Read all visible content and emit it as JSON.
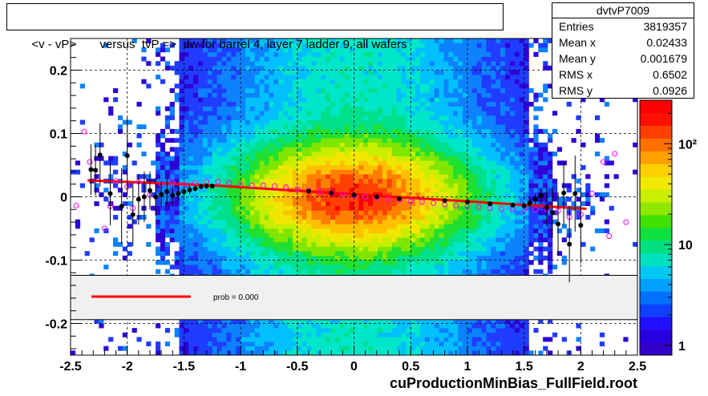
{
  "title": "<v - vP>       versus  tvP =>  dw for barrel 4, layer 7 ladder 9, all wafers",
  "footer": "cuProductionMinBias_FullField.root",
  "stats": {
    "name": "dvtvP7009",
    "rows": [
      {
        "label": "Entries",
        "value": "3819357"
      },
      {
        "label": "Mean x",
        "value": "0.02433"
      },
      {
        "label": "Mean y",
        "value": "0.001679"
      },
      {
        "label": "RMS x",
        "value": "0.6502"
      },
      {
        "label": "RMS y",
        "value": "0.0926"
      }
    ]
  },
  "fit_legend": {
    "label": "prob = 0.000",
    "color": "#ff0000"
  },
  "colors": {
    "fit_line": "#ff0000",
    "profile_black": "#000000",
    "profile_magenta": "#ff00ff",
    "legend_band": "#f0f0f0"
  },
  "chart_data": {
    "type": "heatmap",
    "title": "<v - vP>       versus  tvP =>  dw for barrel 4, layer 7 ladder 9, all wafers",
    "xlim": [
      -2.5,
      2.5
    ],
    "ylim": [
      -0.25,
      0.25
    ],
    "x_ticks": [
      "-2.5",
      "-2",
      "-1.5",
      "-1",
      "-0.5",
      "0",
      "0.5",
      "1",
      "1.5",
      "2",
      "2.5"
    ],
    "x_tick_values": [
      -2.5,
      -2,
      -1.5,
      -1,
      -0.5,
      0,
      0.5,
      1,
      1.5,
      2,
      2.5
    ],
    "y_ticks": [
      "0.2",
      "0.1",
      "0",
      "-0.1",
      "-0.2"
    ],
    "y_tick_values": [
      0.2,
      0.1,
      0,
      -0.1,
      -0.2
    ],
    "z_scale": "log",
    "z_ticks": [
      "1",
      "10",
      "10²"
    ],
    "z_tick_values": [
      1,
      10,
      100
    ],
    "grid": true,
    "fit_line": {
      "x": [
        -2.35,
        -1.25,
        2.05
      ],
      "y": [
        0.026,
        0.018,
        -0.019
      ]
    },
    "profile_black": {
      "x": [
        -2.32,
        -2.28,
        -2.24,
        -2.15,
        -2.05,
        -2.0,
        -1.95,
        -1.9,
        -1.85,
        -1.8,
        -1.75,
        -1.7,
        -1.65,
        -1.6,
        -1.55,
        -1.5,
        -1.45,
        -1.4,
        -1.35,
        -1.3,
        -1.25,
        -0.4,
        -0.2,
        0,
        0.2,
        0.4,
        0.8,
        1.0,
        1.2,
        1.4,
        1.5,
        1.55,
        1.6,
        1.65,
        1.7,
        1.75,
        1.8,
        1.85,
        1.9,
        1.95,
        2.0
      ],
      "y": [
        0.043,
        0.042,
        0.066,
        0.005,
        -0.015,
        0.065,
        -0.028,
        -0.004,
        0.0,
        0.01,
        0.0,
        0.004,
        0.008,
        0.002,
        0.005,
        0.008,
        0.011,
        0.013,
        0.016,
        0.017,
        0.017,
        0.009,
        0.006,
        0.003,
        0.0,
        -0.003,
        -0.006,
        -0.008,
        -0.011,
        -0.013,
        -0.014,
        -0.01,
        -0.004,
        0.002,
        -0.017,
        -0.025,
        -0.043,
        0.006,
        -0.075,
        0.005,
        -0.045
      ],
      "yerr": [
        0.04,
        0.04,
        0.05,
        0.05,
        0.06,
        0.06,
        0.05,
        0.04,
        0.04,
        0.03,
        0.03,
        0.02,
        0.02,
        0.015,
        0.01,
        0.008,
        0.006,
        0.005,
        0.004,
        0.003,
        0.003,
        0.001,
        0.001,
        0.001,
        0.001,
        0.001,
        0.001,
        0.001,
        0.002,
        0.003,
        0.004,
        0.006,
        0.008,
        0.012,
        0.03,
        0.04,
        0.05,
        0.05,
        0.06,
        0.06,
        0.06
      ]
    },
    "profile_magenta": {
      "x": [
        -2.45,
        -2.38,
        -2.33,
        -2.2,
        -2.15,
        -2.1,
        -2.0,
        -1.95,
        -1.9,
        -1.8,
        -1.7,
        -1.6,
        -1.5,
        -1.4,
        -1.3,
        -1.2,
        -1.1,
        -1.0,
        -0.9,
        -0.8,
        -0.7,
        -0.6,
        -0.5,
        -0.4,
        -0.3,
        -0.2,
        -0.1,
        0.0,
        0.1,
        0.2,
        0.3,
        0.4,
        0.5,
        0.6,
        0.7,
        0.8,
        0.9,
        1.0,
        1.1,
        1.2,
        1.3,
        1.4,
        1.5,
        1.6,
        1.7,
        1.8,
        1.9,
        2.0,
        2.1,
        2.2,
        2.25,
        2.3,
        2.4
      ],
      "y": [
        -0.014,
        0.103,
        0.055,
        -0.05,
        -0.015,
        0.025,
        0.016,
        -0.018,
        0.024,
        0.003,
        0.02,
        0.023,
        0.02,
        0.022,
        0.024,
        0.024,
        0.022,
        0.02,
        0.018,
        0.018,
        0.017,
        0.015,
        0.012,
        0.01,
        0.008,
        0.006,
        0.004,
        0.002,
        0.0,
        -0.002,
        -0.004,
        -0.005,
        -0.007,
        -0.008,
        -0.01,
        -0.012,
        -0.014,
        -0.015,
        -0.016,
        -0.018,
        -0.019,
        -0.019,
        -0.02,
        -0.02,
        -0.02,
        -0.022,
        -0.032,
        -0.028,
        0.005,
        0.055,
        -0.062,
        0.068,
        -0.04
      ]
    }
  }
}
